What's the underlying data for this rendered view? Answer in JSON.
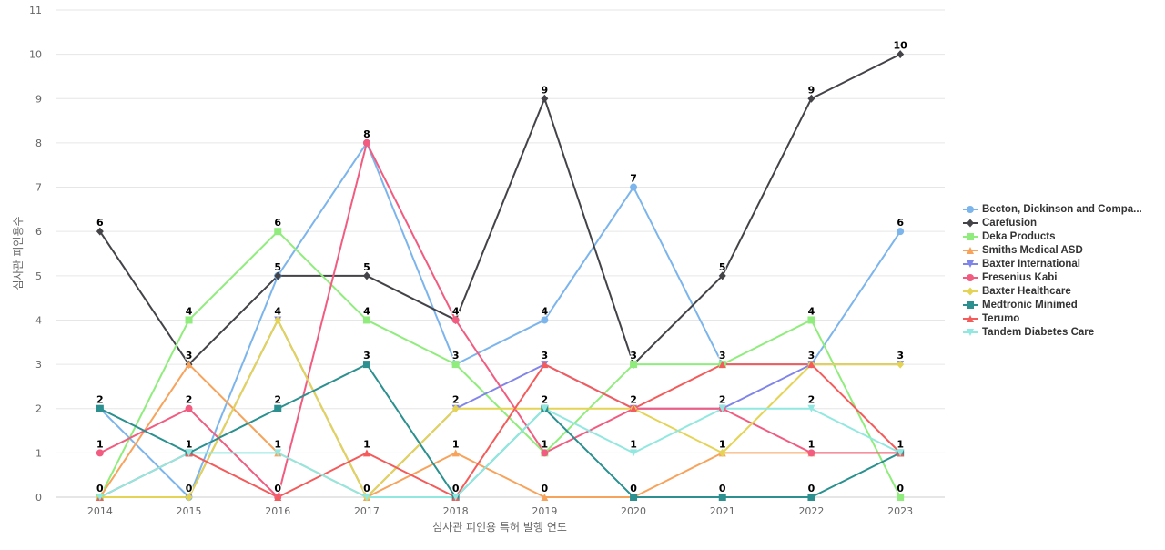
{
  "chart_data": {
    "type": "line",
    "title": "",
    "xlabel": "심사관 피인용 특허 발행 연도",
    "ylabel": "심사관 피인용수",
    "x": [
      "2014",
      "2015",
      "2016",
      "2017",
      "2018",
      "2019",
      "2020",
      "2021",
      "2022",
      "2023"
    ],
    "ylim": [
      0,
      11
    ],
    "yticks": [
      0,
      1,
      2,
      3,
      4,
      5,
      6,
      7,
      8,
      9,
      10,
      11
    ],
    "grid": true,
    "legend_position": "right",
    "series": [
      {
        "name": "Becton, Dickinson and Compa...",
        "color": "#7cb5ec",
        "marker": "circle",
        "values": [
          2,
          0,
          5,
          8,
          3,
          4,
          7,
          3,
          3,
          6
        ]
      },
      {
        "name": "Carefusion",
        "color": "#434348",
        "marker": "diamond",
        "values": [
          6,
          3,
          5,
          5,
          4,
          9,
          3,
          5,
          9,
          10
        ]
      },
      {
        "name": "Deka Products",
        "color": "#90ed7d",
        "marker": "square",
        "values": [
          0,
          4,
          6,
          4,
          3,
          1,
          3,
          3,
          4,
          0
        ]
      },
      {
        "name": "Smiths Medical ASD",
        "color": "#f7a35c",
        "marker": "triangle",
        "values": [
          0,
          3,
          1,
          0,
          1,
          0,
          0,
          1,
          1,
          1
        ]
      },
      {
        "name": "Baxter International",
        "color": "#8085e9",
        "marker": "triangle-down",
        "values": [
          0,
          0,
          4,
          0,
          2,
          3,
          2,
          2,
          3,
          3
        ]
      },
      {
        "name": "Fresenius Kabi",
        "color": "#f15c80",
        "marker": "circle",
        "values": [
          1,
          2,
          0,
          8,
          4,
          1,
          2,
          2,
          1,
          1
        ]
      },
      {
        "name": "Baxter Healthcare",
        "color": "#e4d354",
        "marker": "diamond",
        "values": [
          0,
          0,
          4,
          0,
          2,
          2,
          2,
          1,
          3,
          3
        ]
      },
      {
        "name": "Medtronic Minimed",
        "color": "#2b908f",
        "marker": "square",
        "values": [
          2,
          1,
          2,
          3,
          0,
          2,
          0,
          0,
          0,
          1
        ]
      },
      {
        "name": "Terumo",
        "color": "#f45b5b",
        "marker": "triangle",
        "values": [
          0,
          1,
          0,
          1,
          0,
          3,
          2,
          3,
          3,
          1
        ]
      },
      {
        "name": "Tandem Diabetes Care",
        "color": "#91e8e1",
        "marker": "triangle-down",
        "values": [
          0,
          1,
          1,
          0,
          0,
          2,
          1,
          2,
          2,
          1
        ]
      }
    ],
    "data_labels": [
      {
        "x": "2014",
        "value": 6
      },
      {
        "x": "2014",
        "value": 2
      },
      {
        "x": "2014",
        "value": 1
      },
      {
        "x": "2014",
        "value": 0
      },
      {
        "x": "2015",
        "value": 4
      },
      {
        "x": "2015",
        "value": 3
      },
      {
        "x": "2015",
        "value": 2
      },
      {
        "x": "2015",
        "value": 1
      },
      {
        "x": "2015",
        "value": 0
      },
      {
        "x": "2016",
        "value": 6
      },
      {
        "x": "2016",
        "value": 5
      },
      {
        "x": "2016",
        "value": 4
      },
      {
        "x": "2016",
        "value": 2
      },
      {
        "x": "2016",
        "value": 1
      },
      {
        "x": "2016",
        "value": 0
      },
      {
        "x": "2017",
        "value": 8
      },
      {
        "x": "2017",
        "value": 5
      },
      {
        "x": "2017",
        "value": 4
      },
      {
        "x": "2017",
        "value": 3
      },
      {
        "x": "2017",
        "value": 1
      },
      {
        "x": "2017",
        "value": 0
      },
      {
        "x": "2018",
        "value": 4
      },
      {
        "x": "2018",
        "value": 3
      },
      {
        "x": "2018",
        "value": 2
      },
      {
        "x": "2018",
        "value": 1
      },
      {
        "x": "2018",
        "value": 0
      },
      {
        "x": "2019",
        "value": 9
      },
      {
        "x": "2019",
        "value": 4
      },
      {
        "x": "2019",
        "value": 3
      },
      {
        "x": "2019",
        "value": 2
      },
      {
        "x": "2019",
        "value": 1
      },
      {
        "x": "2019",
        "value": 0
      },
      {
        "x": "2020",
        "value": 7
      },
      {
        "x": "2020",
        "value": 3
      },
      {
        "x": "2020",
        "value": 2
      },
      {
        "x": "2020",
        "value": 1
      },
      {
        "x": "2020",
        "value": 0
      },
      {
        "x": "2021",
        "value": 5
      },
      {
        "x": "2021",
        "value": 3
      },
      {
        "x": "2021",
        "value": 2
      },
      {
        "x": "2021",
        "value": 1
      },
      {
        "x": "2021",
        "value": 0
      },
      {
        "x": "2022",
        "value": 9
      },
      {
        "x": "2022",
        "value": 4
      },
      {
        "x": "2022",
        "value": 3
      },
      {
        "x": "2022",
        "value": 2
      },
      {
        "x": "2022",
        "value": 1
      },
      {
        "x": "2022",
        "value": 0
      },
      {
        "x": "2023",
        "value": 10
      },
      {
        "x": "2023",
        "value": 6
      },
      {
        "x": "2023",
        "value": 3
      },
      {
        "x": "2023",
        "value": 1
      },
      {
        "x": "2023",
        "value": 0
      }
    ]
  }
}
